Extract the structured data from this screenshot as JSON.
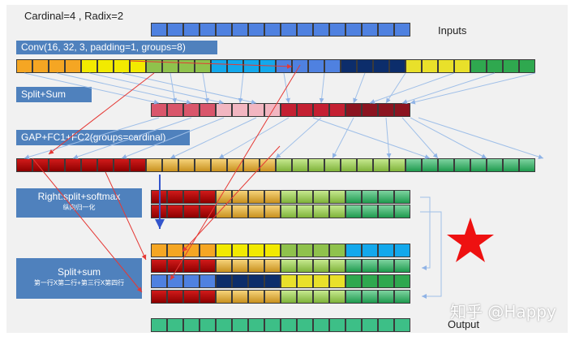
{
  "title": "Cardinal=4 , Radix=2",
  "labels": {
    "inputs": "Inputs",
    "output": "Output"
  },
  "steps": {
    "conv": "Conv(16, 32, 3, padding=1, groups=8)",
    "split_sum": "Split+Sum",
    "gap": "GAP+FC1+FC2(groups=cardinal)",
    "right_softmax": "Right:split+softmax",
    "right_softmax_sub": "纵向归一化",
    "split_sum2": "Split+sum",
    "split_sum2_sub": "第一行X第二行+第三行X第四行"
  },
  "watermark": "知乎 @Happy",
  "colors": {
    "input": "#4f81e0",
    "box": "#4f81bd",
    "arrow_red": "#e53935",
    "arrow_blue": "#8fb3e6",
    "star": "#ee1111",
    "output": "#3dbf87"
  },
  "icons": {
    "star": "star-icon"
  }
}
